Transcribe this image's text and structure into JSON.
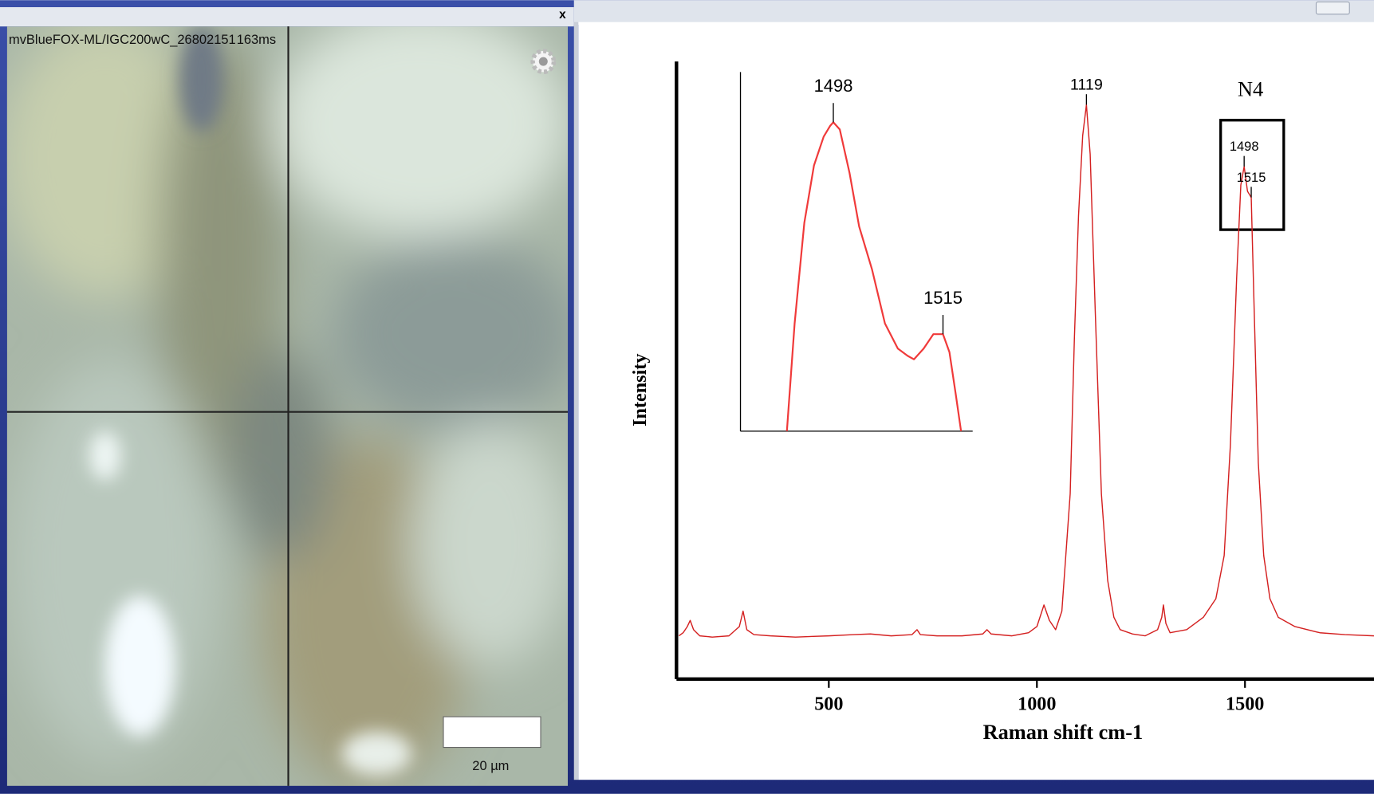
{
  "camera": {
    "title": "mvBlueFOX-ML/IGC200wC_26802151",
    "exposure": "163ms",
    "scale_bar": "20 µm",
    "close": "x"
  },
  "chart_data": [
    {
      "type": "line",
      "xlabel": "Raman shift cm-1",
      "ylabel": "Intensity",
      "label": "N4",
      "x": [
        140,
        150,
        160,
        167,
        175,
        190,
        220,
        260,
        285,
        294,
        303,
        320,
        360,
        420,
        500,
        560,
        600,
        650,
        700,
        712,
        720,
        760,
        820,
        870,
        880,
        890,
        940,
        980,
        1000,
        1017,
        1030,
        1045,
        1060,
        1080,
        1090,
        1100,
        1110,
        1119,
        1128,
        1140,
        1155,
        1170,
        1185,
        1200,
        1230,
        1260,
        1290,
        1300,
        1304,
        1310,
        1320,
        1360,
        1400,
        1430,
        1450,
        1465,
        1480,
        1490,
        1498,
        1506,
        1515,
        1522,
        1532,
        1545,
        1560,
        1580,
        1620,
        1680,
        1740,
        1810
      ],
      "series": [
        {
          "color": "#d42020",
          "values": [
            7,
            7.5,
            8.5,
            9.5,
            8,
            7,
            6.8,
            7,
            8.5,
            11,
            8,
            7.2,
            7,
            6.8,
            7,
            7.2,
            7.3,
            7,
            7.2,
            8,
            7.2,
            7,
            7,
            7.3,
            8,
            7.3,
            7,
            7.5,
            8.5,
            12,
            9.5,
            8,
            11,
            30,
            55,
            75,
            88,
            93,
            85,
            60,
            30,
            16,
            10,
            8,
            7.3,
            7,
            8,
            10,
            12,
            9,
            7.5,
            8,
            10,
            13,
            20,
            38,
            65,
            80,
            83,
            79,
            78,
            60,
            35,
            20,
            13,
            10,
            8.5,
            7.5,
            7.2,
            7
          ]
        }
      ],
      "xlim": [
        134,
        1810
      ],
      "ylim": [
        0,
        100
      ],
      "xticks": [
        500,
        1000,
        1500
      ],
      "annotations": [
        {
          "x": 1119,
          "y": 93
        },
        {
          "x": 1498,
          "y": 83
        },
        {
          "x": 1515,
          "y": 78
        }
      ]
    },
    {
      "type": "line",
      "x": [
        1490.8,
        1492,
        1493.5,
        1495,
        1496.5,
        1497.5,
        1498,
        1499,
        1500.5,
        1502,
        1504,
        1506,
        1508,
        1509.5,
        1510.5,
        1512,
        1513.5,
        1515,
        1516,
        1517,
        1517.8
      ],
      "series": [
        {
          "color": "#f03a3a",
          "values": [
            0,
            30,
            58,
            74,
            82,
            85,
            86,
            84,
            72,
            57,
            45,
            30,
            23,
            21,
            20,
            23,
            27,
            27,
            22,
            10,
            0
          ]
        }
      ],
      "xlim": [
        1483.6,
        1519.6
      ],
      "ylim": [
        0,
        100
      ],
      "annotations": [
        {
          "x": 1498,
          "y": 86
        },
        {
          "x": 1515,
          "y": 27
        }
      ]
    }
  ]
}
